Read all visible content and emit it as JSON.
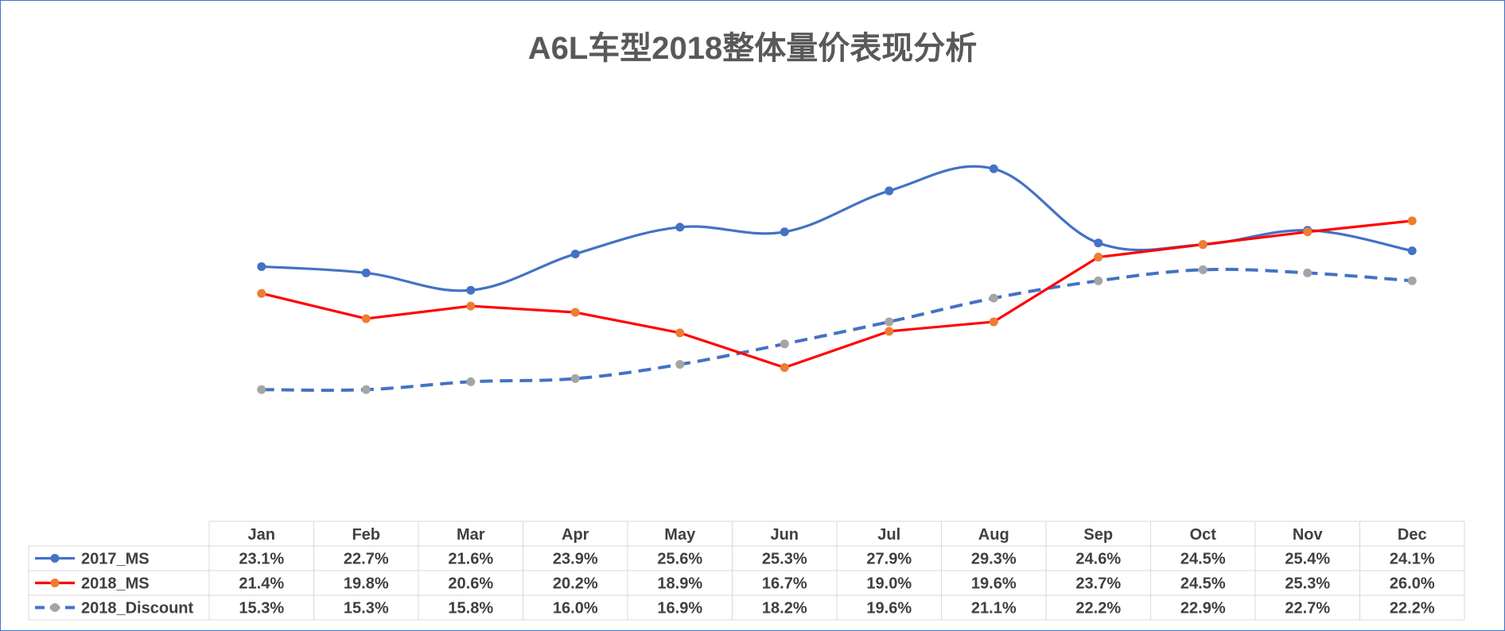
{
  "title": "A6L车型2018整体量价表现分析",
  "chart_data": {
    "type": "line",
    "title": "A6L车型2018整体量价表现分析",
    "categories": [
      "Jan",
      "Feb",
      "Mar",
      "Apr",
      "May",
      "Jun",
      "Jul",
      "Aug",
      "Sep",
      "Oct",
      "Nov",
      "Dec"
    ],
    "ylim": [
      0,
      40
    ],
    "grid": false,
    "legend": "table-bottom",
    "series": [
      {
        "name": "2017_MS",
        "color": "#4472c4",
        "marker_color": "#4472c4",
        "dash": false,
        "smooth": true,
        "values": [
          23.1,
          22.7,
          21.6,
          23.9,
          25.6,
          25.3,
          27.9,
          29.3,
          24.6,
          24.5,
          25.4,
          24.1
        ],
        "labels": [
          "23.1%",
          "22.7%",
          "21.6%",
          "23.9%",
          "25.6%",
          "25.3%",
          "27.9%",
          "29.3%",
          "24.6%",
          "24.5%",
          "25.4%",
          "24.1%"
        ]
      },
      {
        "name": "2018_MS",
        "color": "#ff0000",
        "marker_color": "#ed7d31",
        "dash": false,
        "smooth": false,
        "values": [
          21.4,
          19.8,
          20.6,
          20.2,
          18.9,
          16.7,
          19.0,
          19.6,
          23.7,
          24.5,
          25.3,
          26.0
        ],
        "labels": [
          "21.4%",
          "19.8%",
          "20.6%",
          "20.2%",
          "18.9%",
          "16.7%",
          "19.0%",
          "19.6%",
          "23.7%",
          "24.5%",
          "25.3%",
          "26.0%"
        ]
      },
      {
        "name": "2018_Discount",
        "color": "#4472c4",
        "marker_color": "#a5a5a5",
        "dash": true,
        "smooth": true,
        "values": [
          15.3,
          15.3,
          15.8,
          16.0,
          16.9,
          18.2,
          19.6,
          21.1,
          22.2,
          22.9,
          22.7,
          22.2
        ],
        "labels": [
          "15.3%",
          "15.3%",
          "15.8%",
          "16.0%",
          "16.9%",
          "18.2%",
          "19.6%",
          "21.1%",
          "22.2%",
          "22.9%",
          "22.7%",
          "22.2%"
        ]
      }
    ]
  }
}
